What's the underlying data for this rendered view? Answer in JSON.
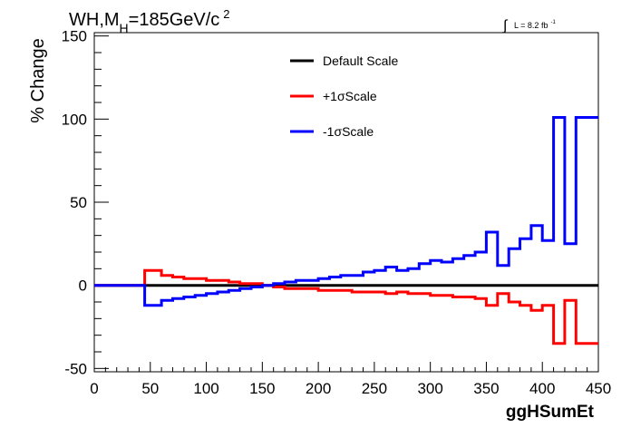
{
  "chart_data": {
    "type": "line",
    "title": {
      "main": "WH,M",
      "sub": "H",
      "value": "=185GeV/c",
      "sup": "2"
    },
    "luminosity": {
      "integral_sign": "∫",
      "text": "L = 8.2 fb",
      "sup": "-1"
    },
    "xlabel": "ggHSumEt",
    "ylabel": "% Change",
    "xlim": [
      0,
      450
    ],
    "ylim": [
      -52,
      152
    ],
    "x_ticks": [
      0,
      50,
      100,
      150,
      200,
      250,
      300,
      350,
      400,
      450
    ],
    "y_ticks": [
      -50,
      0,
      50,
      100,
      150
    ],
    "x_tick_labels": [
      "0",
      "50",
      "100",
      "150",
      "200",
      "250",
      "300",
      "350",
      "400",
      "450"
    ],
    "y_tick_labels": [
      "-50",
      "0",
      "50",
      "100",
      "150"
    ],
    "grid": false,
    "legend_placement": "top-center",
    "bin_edges": [
      0,
      45,
      60,
      70,
      80,
      90,
      100,
      110,
      120,
      130,
      140,
      150,
      160,
      170,
      180,
      190,
      200,
      210,
      220,
      230,
      240,
      250,
      260,
      270,
      280,
      290,
      300,
      310,
      320,
      330,
      340,
      350,
      360,
      370,
      380,
      390,
      400,
      410,
      420,
      430,
      440,
      450
    ],
    "series": [
      {
        "name": "Default Scale",
        "color": "#000000",
        "values": [
          0,
          0,
          0,
          0,
          0,
          0,
          0,
          0,
          0,
          0,
          0,
          0,
          0,
          0,
          0,
          0,
          0,
          0,
          0,
          0,
          0,
          0,
          0,
          0,
          0,
          0,
          0,
          0,
          0,
          0,
          0,
          0,
          0,
          0,
          0,
          0,
          0,
          0,
          0,
          0,
          0
        ]
      },
      {
        "name": "+1σScale",
        "color": "#ff0000",
        "values": [
          0,
          9,
          6,
          5,
          4,
          4,
          3,
          3,
          2,
          1,
          1,
          0,
          -1,
          -2,
          -2,
          -2,
          -3,
          -3,
          -3,
          -4,
          -4,
          -4,
          -5,
          -4,
          -5,
          -5,
          -6,
          -6,
          -7,
          -7,
          -8,
          -12,
          -5,
          -10,
          -12,
          -15,
          -12,
          -35,
          -9,
          -35,
          -35
        ]
      },
      {
        "name": "-1σScale",
        "color": "#0000ff",
        "values": [
          0,
          -12,
          -9,
          -8,
          -7,
          -6,
          -5,
          -4,
          -3,
          -2,
          -1,
          0,
          1,
          2,
          3,
          3,
          4,
          5,
          6,
          6,
          8,
          9,
          11,
          9,
          10,
          13,
          15,
          14,
          16,
          18,
          20,
          32,
          12,
          22,
          28,
          36,
          27,
          101,
          25,
          101,
          101
        ]
      }
    ]
  }
}
